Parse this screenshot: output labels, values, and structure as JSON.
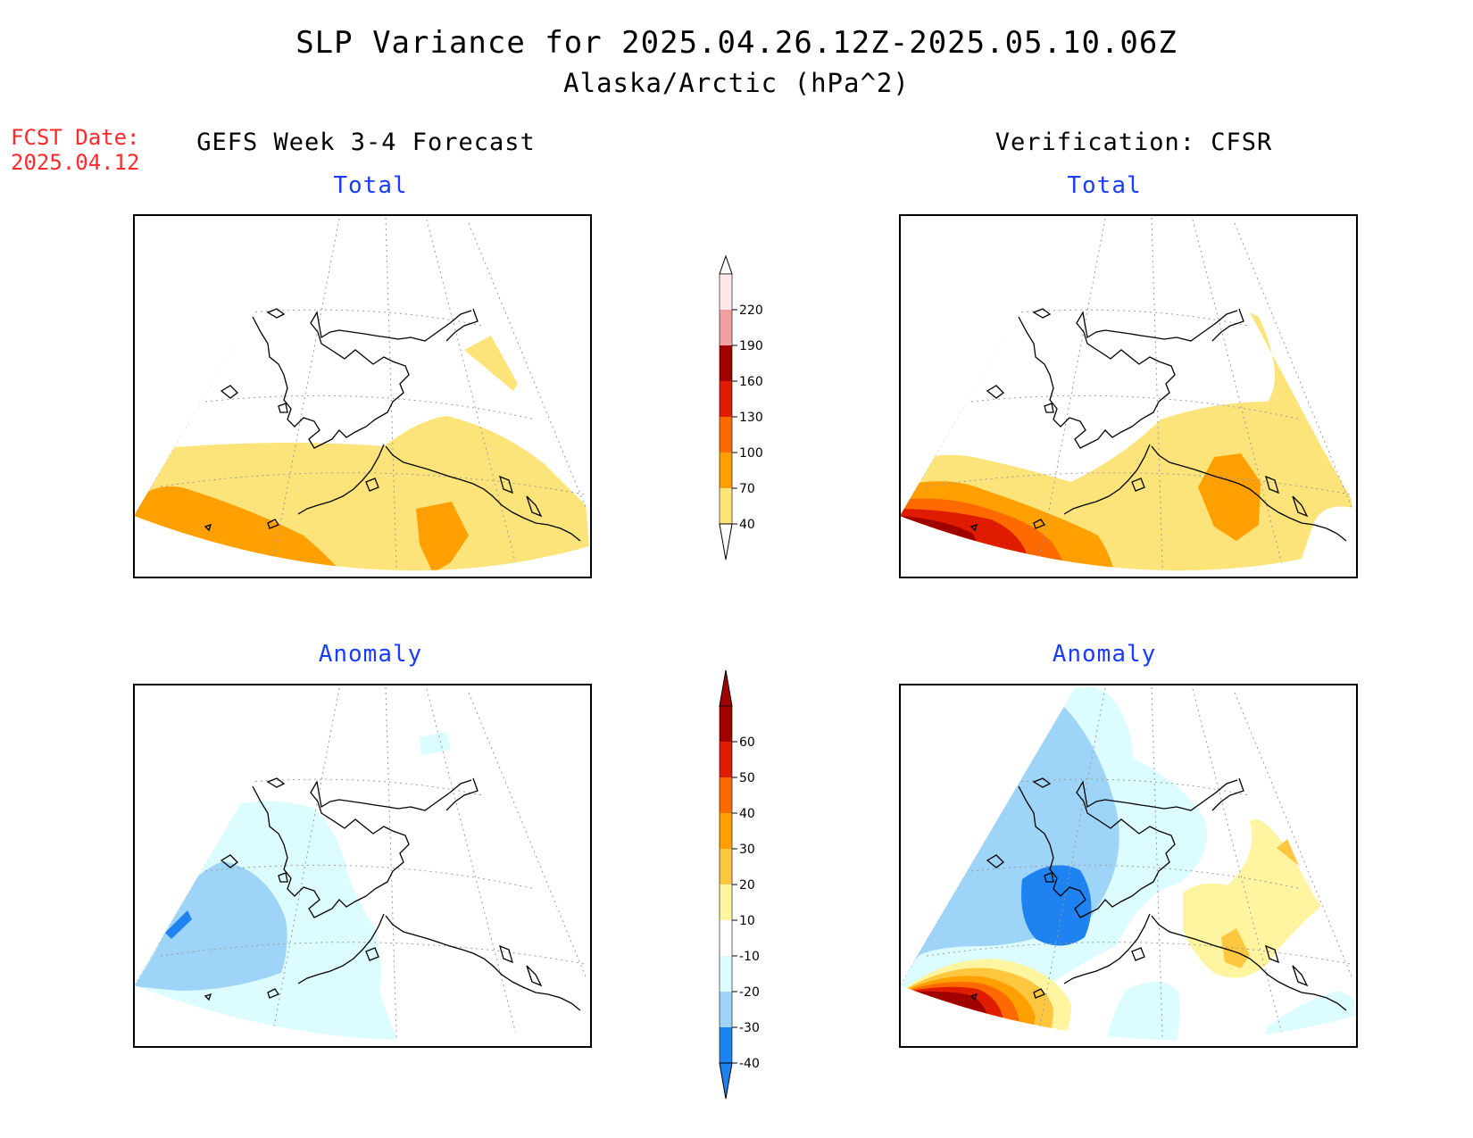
{
  "title": "SLP Variance for 2025.04.26.12Z-2025.05.10.06Z",
  "subtitle": "Alaska/Arctic (hPa^2)",
  "fcst_date": {
    "label": "FCST Date:",
    "value": "2025.04.12"
  },
  "left_column_title": "GEFS Week 3-4 Forecast",
  "right_column_title": "Verification: CFSR",
  "panels": {
    "top_left": "Total",
    "top_right": "Total",
    "bottom_left": "Anomaly",
    "bottom_right": "Anomaly"
  },
  "colorbar_total": {
    "levels": [
      "220",
      "190",
      "160",
      "130",
      "100",
      "70",
      "40"
    ],
    "colors": [
      "#f3a0a0",
      "#a00000",
      "#e01c00",
      "#ff6a00",
      "#ffa000",
      "#fde47a"
    ]
  },
  "colorbar_anomaly": {
    "levels": [
      "60",
      "50",
      "40",
      "30",
      "20",
      "10",
      "-10",
      "-20",
      "-30",
      "-40"
    ],
    "colors": [
      "#a00000",
      "#e01c00",
      "#ff6a00",
      "#ffa000",
      "#ffc640",
      "#fff5a0",
      "#ffffff",
      "#dcfcff",
      "#9ed4f8",
      "#1e82f0"
    ]
  }
}
